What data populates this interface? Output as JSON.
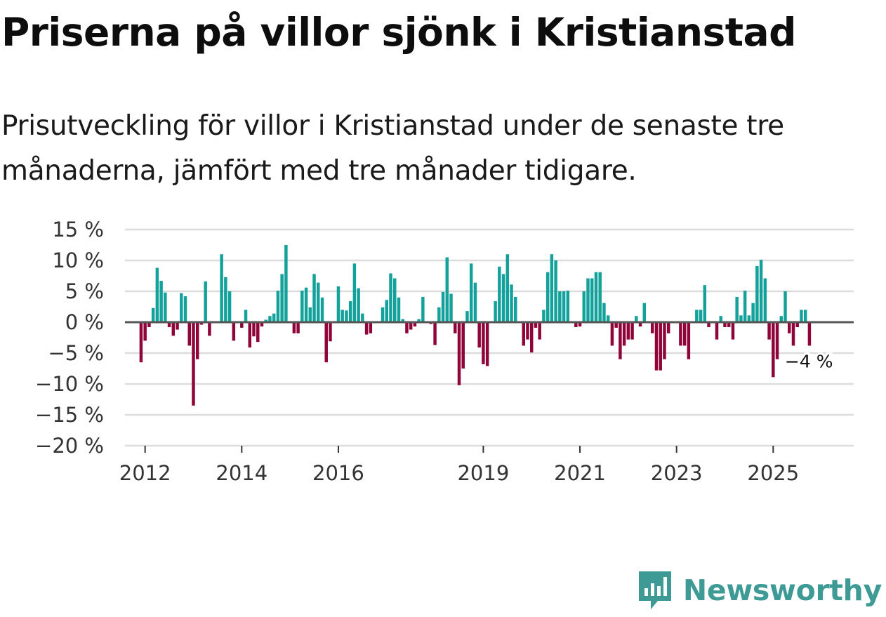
{
  "title": "Priserna på villor sjönk i Kristianstad",
  "subtitle": "Prisutveckling för villor i Kristianstad under de senaste tre månaderna, jämfört med tre månader tidigare.",
  "brand": {
    "name": "Newsworthy",
    "icon": "newsworthy-logo-icon"
  },
  "colors": {
    "positive": "#13a19b",
    "negative": "#8f0539",
    "grid": "#dcdcdc",
    "zero": "#555555",
    "brand": "#3d9a95"
  },
  "chart_data": {
    "type": "bar",
    "title": "Priserna på villor sjönk i Kristianstad",
    "xlabel": "",
    "ylabel": "",
    "ylim": [
      -20,
      15
    ],
    "yticks": [
      15,
      10,
      5,
      0,
      -5,
      -10,
      -15,
      -20
    ],
    "ytick_labels": [
      "15 %",
      "10 %",
      "5 %",
      "0 %",
      "−5 %",
      "−10 %",
      "−15 %",
      "−20 %"
    ],
    "x_start": {
      "year": 2011,
      "month": 8
    },
    "x_end": {
      "year": 2026,
      "month": 9
    },
    "xticks": [
      {
        "year": 2012,
        "label": "2012"
      },
      {
        "year": 2014,
        "label": "2014"
      },
      {
        "year": 2016,
        "label": "2016"
      },
      {
        "year": 2019,
        "label": "2019"
      },
      {
        "year": 2021,
        "label": "2021"
      },
      {
        "year": 2023,
        "label": "2023"
      },
      {
        "year": 2025,
        "label": "2025"
      }
    ],
    "series": [
      {
        "name": "Prisutveckling",
        "start": {
          "year": 2011,
          "month": 12
        },
        "values": [
          -6.5,
          -3,
          -0.8,
          2.3,
          8.8,
          6.7,
          4.8,
          -0.8,
          -2.2,
          -1.2,
          4.7,
          4.2,
          -3.8,
          -13.5,
          -6,
          -0.4,
          6.6,
          -2.2,
          null,
          null,
          11,
          7.3,
          5,
          -3,
          null,
          -0.9,
          2,
          -4.1,
          -2.3,
          -3.2,
          -0.7,
          0.4,
          1,
          1.4,
          5.1,
          7.8,
          12.5,
          null,
          -1.8,
          -1.8,
          5.1,
          5.6,
          2.4,
          7.8,
          6.4,
          4,
          -6.5,
          -3.1,
          null,
          5.8,
          2,
          1.9,
          3.4,
          9.5,
          5.5,
          1.4,
          -2,
          -1.8,
          null,
          null,
          2.4,
          3.6,
          7.9,
          7.1,
          4,
          0.5,
          -1.8,
          -1.2,
          -0.7,
          0.5,
          4.1,
          null,
          -0.3,
          -3.7,
          2.4,
          4.9,
          10.5,
          4.6,
          -1.8,
          -10.2,
          -7.5,
          1.8,
          9.5,
          6.4,
          -4.1,
          -6.8,
          -7.1,
          null,
          3.4,
          9,
          7.8,
          11,
          6.1,
          4.1,
          null,
          -3.8,
          -2.8,
          -4.9,
          -0.9,
          -2.8,
          2,
          8.1,
          11,
          10,
          5,
          5,
          5.1,
          null,
          -0.8,
          -0.7,
          5,
          7.1,
          7.1,
          8.1,
          8.1,
          3.1,
          1.1,
          -3.8,
          -0.9,
          -6,
          -3.8,
          -2.8,
          -2.8,
          1,
          -0.7,
          3.1,
          null,
          -1.8,
          -7.8,
          -7.8,
          -6,
          -1.8,
          null,
          null,
          -3.8,
          -3.8,
          -6,
          null,
          2,
          2,
          6,
          -0.8,
          null,
          -2.8,
          1,
          -0.8,
          -0.8,
          -2.8,
          4.1,
          1.1,
          5.1,
          1.1,
          3.1,
          9.1,
          10.1,
          7.1,
          -2.8,
          -8.9,
          -6,
          1,
          5,
          -1.8,
          -3.8,
          -0.8,
          2,
          2,
          -3.8
        ]
      }
    ],
    "annotations": [
      {
        "text": "−4 %",
        "target": "last"
      }
    ]
  }
}
